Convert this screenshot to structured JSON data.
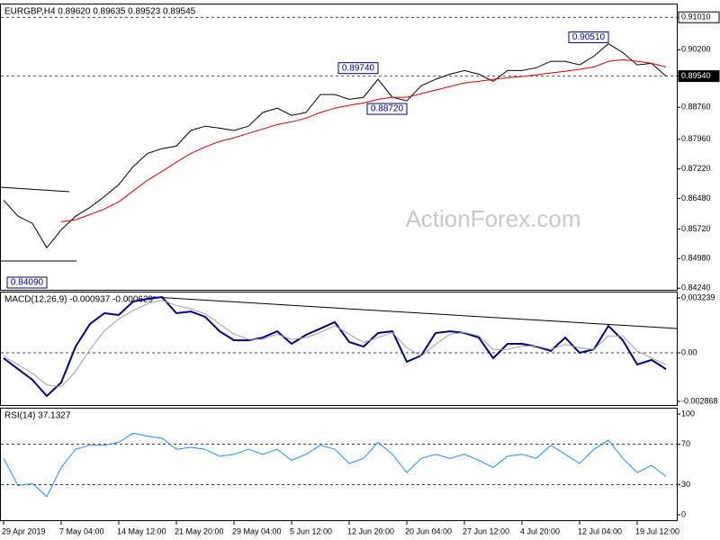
{
  "chart_data": [
    {
      "type": "line",
      "title": "EURGBP,H4  0.89620 0.89635 0.89523 0.89545",
      "ylim": [
        0.842,
        0.9133
      ],
      "yticks": [
        {
          "value": 0.9101,
          "label": "0.91010",
          "style": "boxed"
        },
        {
          "value": 0.902,
          "label": "0.90200"
        },
        {
          "value": 0.8954,
          "label": "0.89540",
          "style": "filled"
        },
        {
          "value": 0.8876,
          "label": "0.88760"
        },
        {
          "value": 0.8796,
          "label": "0.87960"
        },
        {
          "value": 0.8722,
          "label": "0.87220"
        },
        {
          "value": 0.8648,
          "label": "0.86480"
        },
        {
          "value": 0.8572,
          "label": "0.85720"
        },
        {
          "value": 0.8498,
          "label": "0.84980"
        },
        {
          "value": 0.8424,
          "label": "0.84240"
        }
      ],
      "levels": [
        0.9101,
        0.8954
      ],
      "watermark": "ActionForex.com",
      "annotations": [
        {
          "label": "0.84090",
          "value": 0.8409,
          "index": 3
        },
        {
          "label": "0.89740",
          "value": 0.8974,
          "index": 26
        },
        {
          "label": "0.88720",
          "value": 0.8872,
          "index": 28
        },
        {
          "label": "0.90510",
          "value": 0.9051,
          "index": 42
        }
      ],
      "series": [
        {
          "name": "EURGBP",
          "color": "#000000",
          "width": 1,
          "values": [
            0.8644,
            0.8604,
            0.8586,
            0.8525,
            0.857,
            0.8604,
            0.8626,
            0.8653,
            0.8683,
            0.8728,
            0.8761,
            0.8773,
            0.8779,
            0.8818,
            0.8829,
            0.8824,
            0.8818,
            0.8829,
            0.8863,
            0.8874,
            0.8856,
            0.8863,
            0.8908,
            0.8908,
            0.8896,
            0.8901,
            0.8946,
            0.8901,
            0.8892,
            0.893,
            0.8946,
            0.8959,
            0.8968,
            0.8959,
            0.8941,
            0.8968,
            0.8968,
            0.8975,
            0.8991,
            0.8991,
            0.8982,
            0.9004,
            0.9035,
            0.9013,
            0.8982,
            0.8986,
            0.8954
          ]
        },
        {
          "name": "MA",
          "color": "#e00000",
          "width": 1,
          "values": [
            null,
            null,
            null,
            null,
            0.859,
            0.8595,
            0.8608,
            0.8622,
            0.864,
            0.8667,
            0.8694,
            0.8716,
            0.8739,
            0.8761,
            0.8777,
            0.8791,
            0.88,
            0.8811,
            0.8822,
            0.8833,
            0.884,
            0.8849,
            0.8863,
            0.8874,
            0.8881,
            0.8887,
            0.8896,
            0.8901,
            0.8901,
            0.891,
            0.8919,
            0.8928,
            0.8937,
            0.8941,
            0.8946,
            0.895,
            0.8953,
            0.8957,
            0.8962,
            0.8966,
            0.8971,
            0.8977,
            0.8991,
            0.8995,
            0.8991,
            0.8986,
            0.8977
          ]
        }
      ]
    },
    {
      "type": "line",
      "title": "MACD(12,26,9) -0.000937 -0.000629",
      "ylim": [
        -0.00308,
        0.00356
      ],
      "yticks": [
        0.003239,
        {
          "value": 0,
          "label": "0.00"
        },
        -0.002868
      ],
      "levels": [
        0
      ],
      "series": [
        {
          "name": "MACD",
          "color": "#000080",
          "width": 2,
          "values": [
            -0.00032,
            -0.00096,
            -0.00159,
            -0.00255,
            -0.00175,
            0.00037,
            0.0017,
            0.00234,
            0.00223,
            0.00303,
            0.00319,
            0.00329,
            0.00234,
            0.00244,
            0.00212,
            0.00127,
            0.00074,
            0.00074,
            0.0009,
            0.00127,
            0.00053,
            0.00106,
            0.00143,
            0.00181,
            0.00064,
            0.00037,
            0.00117,
            0.00127,
            -0.00053,
            -0.00016,
            0.00117,
            0.00127,
            0.00117,
            0.0009,
            -0.00032,
            0.00053,
            0.00053,
            0.00037,
            0.00011,
            0.0009,
            0,
            0.00021,
            0.00159,
            0.00074,
            -0.00069,
            -0.00042,
            -0.00096
          ]
        },
        {
          "name": "Signal",
          "color": "#a0a0a0",
          "width": 1,
          "values": [
            -0.0002,
            -0.0007,
            -0.0012,
            -0.0019,
            -0.002,
            -0.0011,
            0.0002,
            0.0013,
            0.002,
            0.0025,
            0.0029,
            0.0031,
            0.0028,
            0.0026,
            0.0023,
            0.0017,
            0.0011,
            0.0008,
            0.0008,
            0.0011,
            0.0008,
            0.0009,
            0.0012,
            0.0016,
            0.0011,
            0.0006,
            0.0009,
            0.0012,
            0.0003,
            -0.0002,
            0.0005,
            0.0011,
            0.0012,
            0.001,
            0.0002,
            0.0002,
            0.0004,
            0.0004,
            0.0002,
            0.0005,
            0.0003,
            0.0002,
            0.001,
            0.001,
            0.0001,
            -0.0003,
            -0.0007
          ]
        }
      ]
    },
    {
      "type": "line",
      "title": "RSI(14) 37.1327",
      "ylim": [
        -5.4,
        105.4
      ],
      "yticks": [
        100,
        70,
        30,
        0
      ],
      "levels": [
        70,
        30
      ],
      "categories": [
        "29 Apr 2019",
        null,
        null,
        null,
        "7 May 04:00",
        null,
        null,
        null,
        "14 May 12:00",
        null,
        null,
        null,
        "21 May 20:00",
        null,
        null,
        null,
        "29 May 04:00",
        null,
        null,
        null,
        "5 Jun 12:00",
        null,
        null,
        null,
        "12 Jun 20:00",
        null,
        null,
        null,
        "20 Jun 04:00",
        null,
        null,
        null,
        "27 Jun 12:00",
        null,
        null,
        null,
        "4 Jul 20:00",
        null,
        null,
        null,
        "12 Jul 04:00",
        null,
        null,
        null,
        "19 Jul 12:00",
        null,
        null
      ],
      "series": [
        {
          "name": "RSI",
          "color": "#1e90ff",
          "width": 1,
          "values": [
            56,
            29,
            31,
            18,
            47,
            65,
            69,
            69,
            72,
            81,
            78,
            76,
            65,
            67,
            65,
            58,
            60,
            65,
            60,
            65,
            54,
            60,
            69,
            65,
            51,
            56,
            72,
            60,
            42,
            56,
            60,
            56,
            60,
            54,
            47,
            58,
            60,
            56,
            69,
            60,
            51,
            65,
            74,
            56,
            42,
            49,
            38
          ]
        }
      ]
    }
  ]
}
